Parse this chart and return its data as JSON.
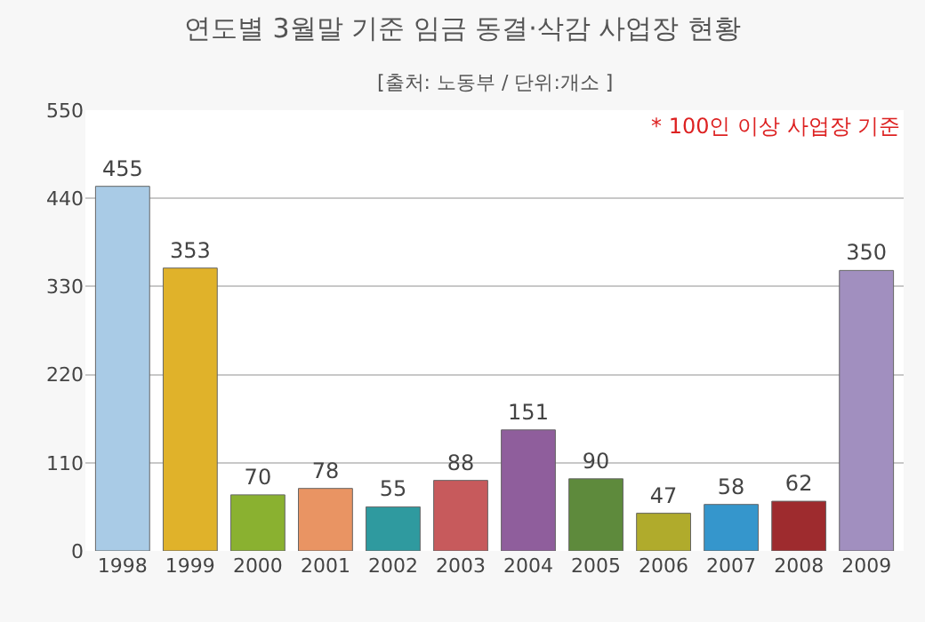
{
  "chart_data": {
    "type": "bar",
    "title": "연도별 3월말 기준 임금 동결·삭감 사업장 현황",
    "subtitle": "[출처: 노동부 / 단위:개소 ]",
    "annotations": [
      "* 100인 이상 사업장 기준"
    ],
    "categories": [
      "1998",
      "1999",
      "2000",
      "2001",
      "2002",
      "2003",
      "2004",
      "2005",
      "2006",
      "2007",
      "2008",
      "2009"
    ],
    "values": [
      455,
      353,
      70,
      78,
      55,
      88,
      151,
      90,
      47,
      58,
      62,
      350
    ],
    "colors": [
      "#a9cbe6",
      "#e0b22a",
      "#8ab130",
      "#e99463",
      "#2f9a9f",
      "#c75a5c",
      "#8f5e9c",
      "#5e8a3c",
      "#b0ab2c",
      "#3596cc",
      "#9e2b2e",
      "#a18fbf"
    ],
    "ylim": [
      0,
      550
    ],
    "yticks": [
      0,
      110,
      220,
      330,
      440,
      550
    ],
    "grid": "y",
    "data_labels": true
  }
}
